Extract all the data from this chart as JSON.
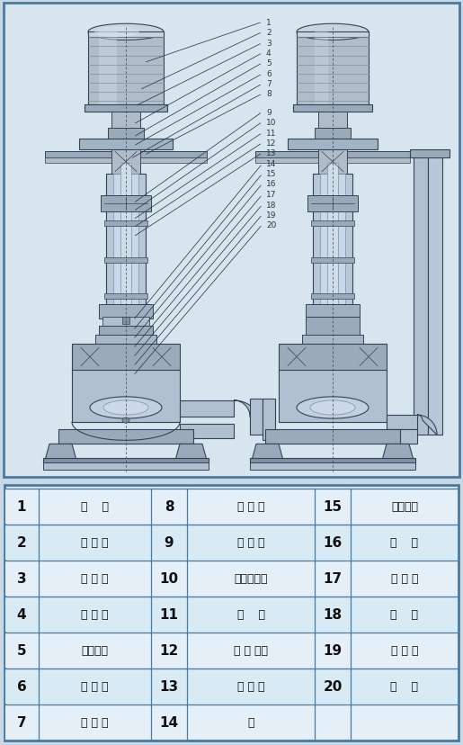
{
  "bg_color": "#c8d8e4",
  "diagram_bg": "#d8e4ee",
  "border_color": "#4a7aa0",
  "table_data": [
    [
      [
        "1",
        "电    机"
      ],
      [
        "8",
        "支 撑 管"
      ],
      [
        "15",
        "叶轮螺田"
      ]
    ],
    [
      [
        "2",
        "联 轴 器"
      ],
      [
        "9",
        "下 轴 承"
      ],
      [
        "16",
        "叶    轮"
      ]
    ],
    [
      [
        "3",
        "电 机 座"
      ],
      [
        "10",
        "上机械密封"
      ],
      [
        "17",
        "密 封 环"
      ]
    ],
    [
      [
        "4",
        "上 轴 承"
      ],
      [
        "11",
        "油    室"
      ],
      [
        "18",
        "泵    体"
      ]
    ],
    [
      [
        "5",
        "上轴承座"
      ],
      [
        "12",
        "机 械 密封"
      ],
      [
        "19",
        "出 水 管"
      ]
    ],
    [
      [
        "6",
        "安 装 盘"
      ],
      [
        "13",
        "后 盖 板"
      ],
      [
        "20",
        "底    盘"
      ]
    ],
    [
      [
        "7",
        "加 长 轴"
      ],
      [
        "14",
        "键"
      ],
      [
        "",
        ""
      ]
    ]
  ],
  "lc": "#334455",
  "fc_motor": "#b8c4d0",
  "fc_shaft": "#c8d4e0",
  "fc_mid": "#a8b8c8",
  "fc_light": "#d0dce8",
  "fc_base": "#a0b0c0"
}
